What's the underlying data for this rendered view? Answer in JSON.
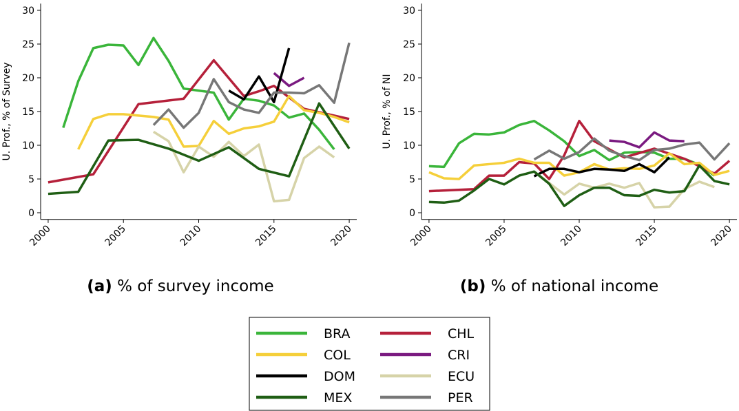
{
  "chart_data": [
    {
      "type": "line",
      "ylabel": "U. Prof., % of Survey",
      "caption_label": "(a)",
      "caption": "% of survey income",
      "xlim": [
        1999.5,
        2020.5
      ],
      "xticks": [
        2000,
        2005,
        2010,
        2015,
        2020
      ],
      "ylim": [
        -1,
        31
      ],
      "yticks": [
        0,
        5,
        10,
        15,
        20,
        25,
        30
      ],
      "series": [
        {
          "name": "BRA",
          "color": "#3ab53a",
          "x": [
            2001,
            2002,
            2003,
            2004,
            2005,
            2006,
            2007,
            2008,
            2009,
            2010,
            2011,
            2012,
            2013,
            2014,
            2015,
            2016,
            2017,
            2018,
            2019
          ],
          "values": [
            12.6,
            19.5,
            24.4,
            24.9,
            24.8,
            21.9,
            25.9,
            22.5,
            18.4,
            18.1,
            17.8,
            13.8,
            16.9,
            16.6,
            15.9,
            14.1,
            14.7,
            12.3,
            9.4
          ]
        },
        {
          "name": "CHL",
          "color": "#b5203a",
          "x": [
            2000,
            2003,
            2006,
            2009,
            2011,
            2013,
            2014,
            2015,
            2017,
            2020
          ],
          "values": [
            4.5,
            5.7,
            16.1,
            16.9,
            22.6,
            17.3,
            18.0,
            18.8,
            15.4,
            13.9
          ]
        },
        {
          "name": "COL",
          "color": "#f5cf3a",
          "x": [
            2002,
            2003,
            2004,
            2005,
            2006,
            2007,
            2008,
            2009,
            2010,
            2011,
            2012,
            2013,
            2014,
            2015,
            2016,
            2017,
            2018,
            2019,
            2020
          ],
          "values": [
            9.4,
            13.9,
            14.6,
            14.6,
            14.4,
            14.2,
            13.8,
            9.8,
            9.9,
            13.6,
            11.7,
            12.5,
            12.8,
            13.5,
            17.3,
            15.2,
            14.8,
            14.2,
            13.4
          ]
        },
        {
          "name": "CRI",
          "color": "#7a1a80",
          "x": [
            2015,
            2016,
            2017
          ],
          "values": [
            20.7,
            18.8,
            20.0
          ]
        },
        {
          "name": "DOM",
          "color": "#000000",
          "x": [
            2012,
            2013,
            2014,
            2015,
            2016
          ],
          "values": [
            18.1,
            16.8,
            20.2,
            16.4,
            24.4
          ]
        },
        {
          "name": "ECU",
          "color": "#d6d3a8",
          "x": [
            2007,
            2008,
            2009,
            2010,
            2011,
            2012,
            2013,
            2014,
            2015,
            2016,
            2017,
            2018,
            2019
          ],
          "values": [
            12.0,
            10.6,
            6.0,
            9.8,
            8.3,
            10.5,
            8.4,
            10.1,
            1.7,
            1.9,
            8.1,
            9.8,
            8.2
          ]
        },
        {
          "name": "MEX",
          "color": "#1f5e14",
          "x": [
            2000,
            2002,
            2004,
            2006,
            2008,
            2010,
            2012,
            2014,
            2016,
            2018,
            2020
          ],
          "values": [
            2.8,
            3.1,
            10.7,
            10.8,
            9.5,
            7.7,
            9.7,
            6.5,
            5.4,
            16.2,
            9.5
          ]
        },
        {
          "name": "PER",
          "color": "#777777",
          "x": [
            2007,
            2008,
            2009,
            2010,
            2011,
            2012,
            2013,
            2014,
            2015,
            2016,
            2017,
            2018,
            2019,
            2020
          ],
          "values": [
            13.0,
            15.3,
            12.6,
            14.8,
            19.8,
            16.4,
            15.3,
            14.8,
            17.8,
            17.8,
            17.7,
            18.9,
            16.3,
            25.2
          ]
        }
      ]
    },
    {
      "type": "line",
      "ylabel": "U. Prof., % of NI",
      "caption_label": "(b)",
      "caption": "% of national income",
      "xlim": [
        1999.5,
        2020.5
      ],
      "xticks": [
        2000,
        2005,
        2010,
        2015,
        2020
      ],
      "ylim": [
        -1,
        31
      ],
      "yticks": [
        0,
        5,
        10,
        15,
        20,
        25,
        30
      ],
      "series": [
        {
          "color": "#3ab53a",
          "x": [
            2000,
            2001,
            2002,
            2003,
            2004,
            2005,
            2006,
            2007,
            2008,
            2009,
            2010,
            2011,
            2012,
            2013,
            2014,
            2015,
            2016,
            2017,
            2018,
            2019
          ],
          "values": [
            6.9,
            6.8,
            10.3,
            11.7,
            11.6,
            11.9,
            13.0,
            13.6,
            12.2,
            10.6,
            8.4,
            9.3,
            7.8,
            8.9,
            9.0,
            8.9,
            8.0,
            8.0,
            7.1,
            5.5
          ]
        },
        {
          "color": "#b5203a",
          "x": [
            2000,
            2003,
            2004,
            2005,
            2006,
            2007,
            2008,
            2009,
            2010,
            2011,
            2013,
            2015,
            2017,
            2019,
            2020
          ],
          "values": [
            3.2,
            3.5,
            5.5,
            5.5,
            7.5,
            7.3,
            5.0,
            8.5,
            13.6,
            10.6,
            8.2,
            9.5,
            8.0,
            5.8,
            7.7
          ]
        },
        {
          "color": "#f5cf3a",
          "x": [
            2000,
            2001,
            2002,
            2003,
            2004,
            2005,
            2006,
            2007,
            2008,
            2009,
            2010,
            2011,
            2012,
            2013,
            2014,
            2015,
            2016,
            2017,
            2018,
            2019,
            2020
          ],
          "values": [
            6.0,
            5.1,
            5.0,
            7.0,
            7.2,
            7.4,
            8.0,
            7.4,
            7.4,
            5.5,
            6.0,
            7.2,
            6.4,
            6.6,
            6.5,
            7.0,
            8.8,
            7.2,
            7.4,
            5.6,
            6.2
          ]
        },
        {
          "color": "#7a1a80",
          "x": [
            2012,
            2013,
            2014,
            2015,
            2016,
            2017
          ],
          "values": [
            10.7,
            10.5,
            9.7,
            11.9,
            10.7,
            10.6
          ]
        },
        {
          "color": "#000000",
          "x": [
            2007,
            2008,
            2009,
            2010,
            2011,
            2012,
            2013,
            2014,
            2015,
            2016
          ],
          "values": [
            5.4,
            6.5,
            6.5,
            6.0,
            6.5,
            6.4,
            6.2,
            7.2,
            6.0,
            8.2
          ]
        },
        {
          "color": "#d6d3a8",
          "x": [
            2007,
            2008,
            2009,
            2010,
            2011,
            2012,
            2013,
            2014,
            2015,
            2016,
            2017,
            2018,
            2019
          ],
          "values": [
            6.1,
            4.4,
            2.7,
            4.3,
            3.7,
            4.3,
            3.7,
            4.4,
            0.8,
            0.9,
            3.5,
            4.6,
            3.8
          ]
        },
        {
          "color": "#1f5e14",
          "x": [
            2000,
            2001,
            2002,
            2003,
            2004,
            2005,
            2006,
            2007,
            2008,
            2009,
            2010,
            2011,
            2012,
            2013,
            2014,
            2015,
            2016,
            2017,
            2018,
            2019,
            2020
          ],
          "values": [
            1.6,
            1.5,
            1.8,
            3.3,
            5.0,
            4.2,
            5.5,
            6.1,
            4.3,
            1.0,
            2.6,
            3.7,
            3.7,
            2.6,
            2.5,
            3.4,
            3.0,
            3.2,
            7.0,
            4.7,
            4.2
          ]
        },
        {
          "color": "#777777",
          "x": [
            2007,
            2008,
            2009,
            2010,
            2011,
            2012,
            2013,
            2014,
            2015,
            2016,
            2017,
            2018,
            2019,
            2020
          ],
          "values": [
            7.9,
            9.2,
            8.0,
            9.0,
            11.0,
            9.2,
            8.4,
            7.8,
            9.3,
            9.5,
            10.1,
            10.4,
            7.9,
            10.3
          ]
        }
      ]
    }
  ]
}
